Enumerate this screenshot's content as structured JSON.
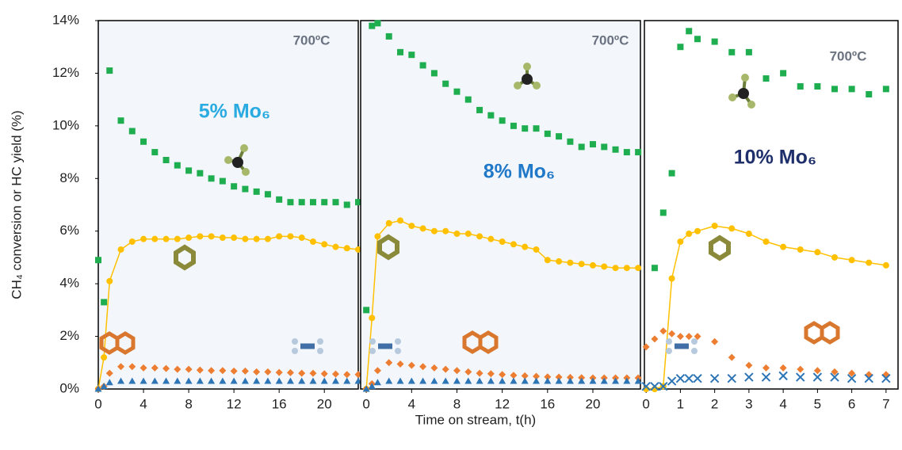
{
  "chart_data": [
    {
      "type": "scatter",
      "ylabel": "CH₄ conversion or HC yield (%)",
      "panel_fill": "#f3f7fc",
      "ylim": [
        0,
        14
      ],
      "yticks": [
        {
          "value": 0,
          "label": "0%"
        },
        {
          "value": 2,
          "label": "2%"
        },
        {
          "value": 4,
          "label": "4%"
        },
        {
          "value": 6,
          "label": "6%"
        },
        {
          "value": 8,
          "label": "8%"
        },
        {
          "value": 10,
          "label": "10%"
        },
        {
          "value": 12,
          "label": "12%"
        },
        {
          "value": 14,
          "label": "14%"
        }
      ],
      "xlim": [
        0,
        23
      ],
      "xticks": [
        0,
        4,
        8,
        12,
        16,
        20
      ],
      "temperature": "700ºC",
      "catalyst": "5% Mo₆",
      "catalyst_color": "#29abe2",
      "x": [
        0,
        0.5,
        1,
        2,
        3,
        4,
        5,
        6,
        7,
        8,
        9,
        10,
        11,
        12,
        13,
        14,
        15,
        16,
        17,
        18,
        19,
        20,
        21,
        22,
        23
      ],
      "series": [
        {
          "color": "#1fae4f",
          "marker": "square",
          "values": [
            4.9,
            3.3,
            12.1,
            10.2,
            9.8,
            9.4,
            9.0,
            8.7,
            8.5,
            8.3,
            8.2,
            8.0,
            7.9,
            7.7,
            7.6,
            7.5,
            7.4,
            7.2,
            7.1,
            7.1,
            7.1,
            7.1,
            7.1,
            7.0,
            7.1
          ]
        },
        {
          "color": "#ffc000",
          "marker": "circle",
          "line": true,
          "values": [
            0,
            1.2,
            4.1,
            5.3,
            5.6,
            5.7,
            5.7,
            5.7,
            5.7,
            5.75,
            5.8,
            5.8,
            5.75,
            5.75,
            5.7,
            5.7,
            5.7,
            5.8,
            5.8,
            5.75,
            5.6,
            5.5,
            5.4,
            5.35,
            5.3
          ]
        },
        {
          "color": "#ed7d31",
          "marker": "diamond",
          "values": [
            0,
            0.1,
            0.6,
            0.85,
            0.85,
            0.8,
            0.8,
            0.78,
            0.75,
            0.75,
            0.72,
            0.7,
            0.7,
            0.68,
            0.68,
            0.65,
            0.65,
            0.63,
            0.62,
            0.6,
            0.6,
            0.58,
            0.57,
            0.55,
            0.55
          ]
        },
        {
          "color": "#2e75b6",
          "marker": "triangle",
          "values": [
            0,
            0.1,
            0.25,
            0.3,
            0.3,
            0.3,
            0.3,
            0.3,
            0.3,
            0.3,
            0.3,
            0.3,
            0.3,
            0.3,
            0.3,
            0.3,
            0.3,
            0.3,
            0.3,
            0.3,
            0.3,
            0.3,
            0.3,
            0.3,
            0.3
          ]
        }
      ]
    },
    {
      "type": "scatter",
      "xlabel": "Time on stream, t(h)",
      "panel_fill": "#f3f7fc",
      "ylim": [
        0,
        14
      ],
      "xlim": [
        -0.5,
        24.2
      ],
      "xticks": [
        0,
        4,
        8,
        12,
        16,
        20
      ],
      "temperature": "700ºC",
      "catalyst": "8% Mo₆",
      "catalyst_color": "#1f78c8",
      "x": [
        0,
        0.5,
        1,
        2,
        3,
        4,
        5,
        6,
        7,
        8,
        9,
        10,
        11,
        12,
        13,
        14,
        15,
        16,
        17,
        18,
        19,
        20,
        21,
        22,
        23,
        24
      ],
      "series": [
        {
          "color": "#1fae4f",
          "marker": "square",
          "values": [
            3.0,
            13.8,
            13.9,
            13.4,
            12.8,
            12.7,
            12.3,
            12.0,
            11.6,
            11.3,
            11.0,
            10.6,
            10.4,
            10.2,
            10.0,
            9.9,
            9.9,
            9.7,
            9.6,
            9.4,
            9.2,
            9.3,
            9.2,
            9.1,
            9.0,
            9.0
          ]
        },
        {
          "color": "#ffc000",
          "marker": "circle",
          "line": true,
          "values": [
            0,
            2.7,
            5.8,
            6.3,
            6.4,
            6.2,
            6.1,
            6.0,
            6.0,
            5.9,
            5.9,
            5.8,
            5.7,
            5.6,
            5.5,
            5.4,
            5.3,
            4.9,
            4.85,
            4.8,
            4.75,
            4.7,
            4.65,
            4.6,
            4.6,
            4.6
          ]
        },
        {
          "color": "#ed7d31",
          "marker": "diamond",
          "values": [
            0,
            0.2,
            0.7,
            1.0,
            0.95,
            0.9,
            0.85,
            0.8,
            0.75,
            0.7,
            0.65,
            0.6,
            0.58,
            0.55,
            0.52,
            0.5,
            0.48,
            0.46,
            0.45,
            0.44,
            0.43,
            0.42,
            0.42,
            0.42,
            0.42,
            0.42
          ]
        },
        {
          "color": "#2e75b6",
          "marker": "triangle",
          "values": [
            0,
            0.1,
            0.25,
            0.3,
            0.3,
            0.3,
            0.3,
            0.3,
            0.3,
            0.3,
            0.3,
            0.3,
            0.3,
            0.3,
            0.3,
            0.3,
            0.3,
            0.3,
            0.3,
            0.3,
            0.3,
            0.3,
            0.3,
            0.3,
            0.3,
            0.3
          ]
        }
      ]
    },
    {
      "type": "scatter",
      "panel_fill": "#ffffff",
      "ylim": [
        0,
        14
      ],
      "xlim": [
        -0.05,
        7.35
      ],
      "xticks": [
        0,
        1,
        2,
        3,
        4,
        5,
        6,
        7
      ],
      "temperature": "700ºC",
      "catalyst": "10% Mo₆",
      "catalyst_color": "#1f2f6b",
      "x": [
        0,
        0.25,
        0.5,
        0.75,
        1,
        1.25,
        1.5,
        2,
        2.5,
        3,
        3.5,
        4,
        4.5,
        5,
        5.5,
        6,
        6.5,
        7
      ],
      "series": [
        {
          "color": "#1fae4f",
          "marker": "square",
          "values": [
            null,
            4.6,
            6.7,
            8.2,
            13.0,
            13.6,
            13.3,
            13.2,
            12.8,
            12.8,
            11.8,
            12.0,
            11.5,
            11.5,
            11.4,
            11.4,
            11.2,
            11.4
          ]
        },
        {
          "color": "#ffc000",
          "marker": "circle",
          "line": true,
          "values": [
            0,
            0,
            0.1,
            4.2,
            5.6,
            5.9,
            6.0,
            6.2,
            6.1,
            5.9,
            5.6,
            5.4,
            5.3,
            5.2,
            5.0,
            4.9,
            4.8,
            4.7
          ]
        },
        {
          "color": "#ed7d31",
          "marker": "diamond",
          "values": [
            1.6,
            1.9,
            2.2,
            2.1,
            2.0,
            2.0,
            2.0,
            1.8,
            1.2,
            0.9,
            0.8,
            0.8,
            0.75,
            0.7,
            0.65,
            0.6,
            0.55,
            0.55
          ]
        },
        {
          "color": "#2e75b6",
          "marker": "x",
          "values": [
            0.1,
            0.1,
            0.1,
            0.3,
            0.4,
            0.4,
            0.4,
            0.4,
            0.4,
            0.45,
            0.45,
            0.5,
            0.45,
            0.45,
            0.45,
            0.4,
            0.4,
            0.4
          ]
        }
      ]
    }
  ]
}
